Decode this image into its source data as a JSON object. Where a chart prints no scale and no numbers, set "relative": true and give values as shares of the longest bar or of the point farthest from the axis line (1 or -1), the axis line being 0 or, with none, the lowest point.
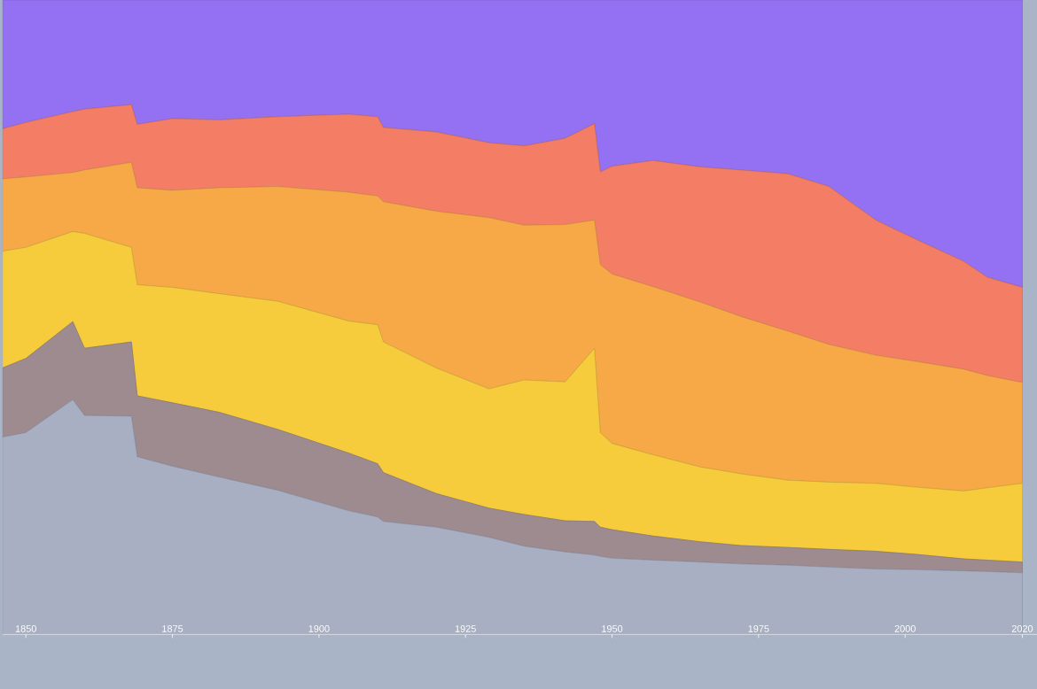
{
  "chart_data": {
    "type": "area",
    "stacked": true,
    "relative": true,
    "x": [
      1846,
      1850,
      1858,
      1860,
      1868,
      1869,
      1875,
      1883,
      1893,
      1905,
      1910,
      1911,
      1920,
      1929,
      1935,
      1942,
      1947,
      1948,
      1950,
      1957,
      1965,
      1972,
      1980,
      1987,
      1995,
      2002,
      2010,
      2014,
      2020
    ],
    "series": [
      {
        "color": "#a8afc3",
        "values": [
          0.311,
          0.318,
          0.37,
          0.345,
          0.344,
          0.28,
          0.265,
          0.248,
          0.227,
          0.195,
          0.185,
          0.178,
          0.169,
          0.153,
          0.139,
          0.13,
          0.125,
          0.123,
          0.12,
          0.117,
          0.114,
          0.111,
          0.109,
          0.106,
          0.103,
          0.102,
          0.1,
          0.099,
          0.097
        ]
      },
      {
        "color": "#9d8b90",
        "values": [
          0.109,
          0.117,
          0.123,
          0.106,
          0.117,
          0.096,
          0.1,
          0.102,
          0.096,
          0.091,
          0.084,
          0.077,
          0.053,
          0.046,
          0.05,
          0.049,
          0.053,
          0.046,
          0.045,
          0.038,
          0.032,
          0.029,
          0.028,
          0.028,
          0.028,
          0.024,
          0.019,
          0.018,
          0.017
        ]
      },
      {
        "color": "#f6cb3c",
        "values": [
          0.184,
          0.175,
          0.142,
          0.181,
          0.149,
          0.175,
          0.182,
          0.187,
          0.202,
          0.208,
          0.219,
          0.206,
          0.198,
          0.188,
          0.212,
          0.219,
          0.273,
          0.149,
          0.136,
          0.128,
          0.118,
          0.113,
          0.106,
          0.106,
          0.107,
          0.106,
          0.107,
          0.114,
          0.124
        ]
      },
      {
        "color": "#f7a947",
        "values": [
          0.114,
          0.111,
          0.093,
          0.1,
          0.134,
          0.153,
          0.153,
          0.167,
          0.181,
          0.203,
          0.203,
          0.221,
          0.247,
          0.27,
          0.244,
          0.248,
          0.202,
          0.265,
          0.267,
          0.265,
          0.26,
          0.248,
          0.235,
          0.217,
          0.202,
          0.198,
          0.192,
          0.177,
          0.159
        ]
      },
      {
        "color": "#f37d65",
        "values": [
          0.079,
          0.086,
          0.096,
          0.096,
          0.091,
          0.1,
          0.113,
          0.107,
          0.11,
          0.123,
          0.125,
          0.117,
          0.125,
          0.118,
          0.125,
          0.136,
          0.152,
          0.146,
          0.17,
          0.199,
          0.213,
          0.231,
          0.248,
          0.249,
          0.213,
          0.192,
          0.17,
          0.155,
          0.15
        ]
      },
      {
        "color": "#9470f2",
        "values": [
          0.203,
          0.193,
          0.176,
          0.172,
          0.165,
          0.196,
          0.187,
          0.189,
          0.184,
          0.18,
          0.184,
          0.201,
          0.208,
          0.225,
          0.23,
          0.218,
          0.195,
          0.271,
          0.262,
          0.253,
          0.263,
          0.268,
          0.274,
          0.294,
          0.347,
          0.378,
          0.412,
          0.437,
          0.453
        ]
      }
    ],
    "xlim": [
      1846,
      2022.5
    ],
    "xticks": [
      1850,
      1875,
      1900,
      1925,
      1950,
      1975,
      2000,
      2020
    ]
  }
}
